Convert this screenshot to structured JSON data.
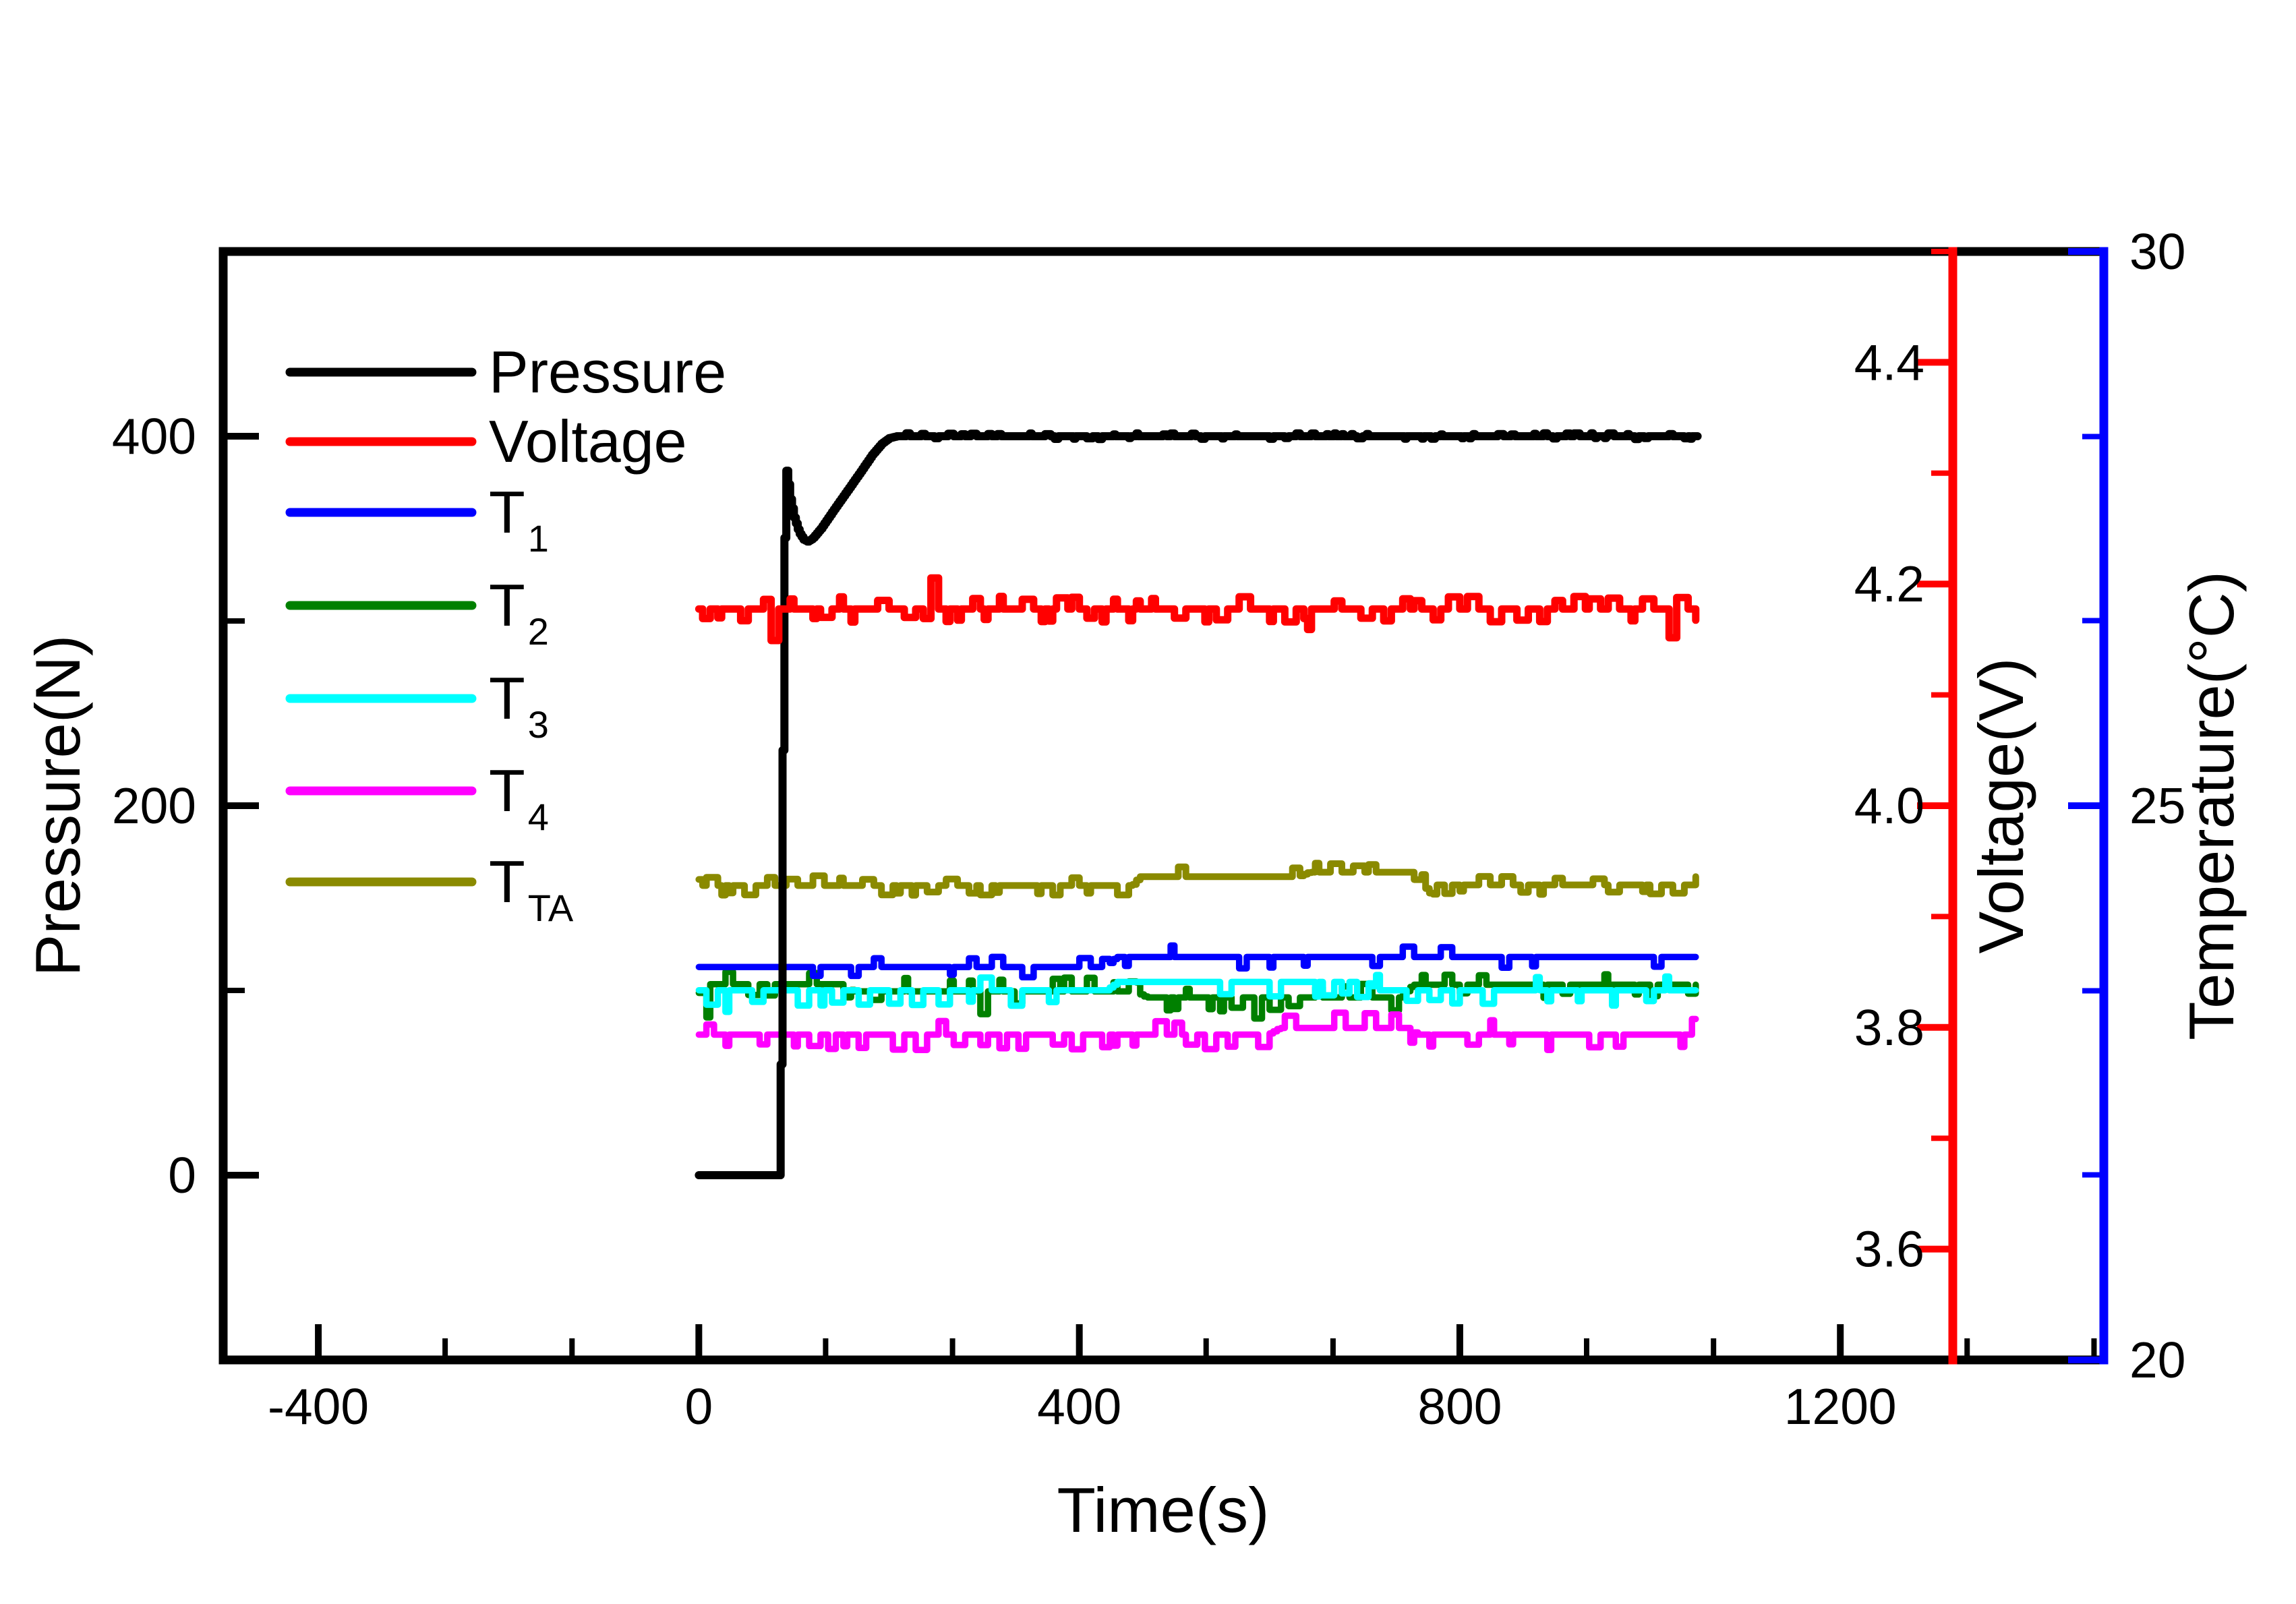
{
  "chart_data": {
    "type": "line",
    "title": "",
    "xlabel": "Time(s)",
    "x_range": [
      -500,
      1477
    ],
    "x_major_ticks": [
      -400,
      0,
      400,
      800,
      1200
    ],
    "x_minor_ticks": [
      -266.7,
      -133.3,
      133.3,
      266.7,
      533.3,
      666.7,
      933.3,
      1066.7,
      1333.3,
      1466.7
    ],
    "grid": false,
    "legend_position": "upper-left-inside",
    "time_span": [
      0,
      1050
    ],
    "sample_dt": 4,
    "axes": {
      "pressure": {
        "label": "Pressure(N)",
        "range": [
          -100,
          500
        ],
        "major_ticks": [
          0,
          200,
          400
        ],
        "minor_ticks": [
          100,
          300
        ],
        "color": "#000000"
      },
      "voltage": {
        "label": "Voltage(V)",
        "range": [
          3.5,
          4.5
        ],
        "major_ticks": [
          3.6,
          3.8,
          4.0,
          4.2,
          4.4
        ],
        "minor_ticks": [
          3.7,
          3.9,
          4.1,
          4.3,
          4.5
        ],
        "color": "#ff0000"
      },
      "temperature": {
        "label": "Temperature(°C)",
        "range": [
          20,
          30
        ],
        "major_ticks": [
          20,
          25,
          30
        ],
        "minor_ticks": [
          21.67,
          23.33,
          26.67,
          28.33
        ],
        "color": "#0000ff"
      }
    },
    "series": [
      {
        "name": "T2",
        "axis": "temperature",
        "color": "#008000",
        "width": 9.5,
        "dt": 4,
        "seed": 2007,
        "keypoints": [
          [
            0,
            23.39
          ],
          [
            152,
            23.39
          ],
          [
            162,
            23.325
          ],
          [
            458,
            23.325
          ],
          [
            470,
            23.27
          ],
          [
            738,
            23.27
          ],
          [
            750,
            23.385
          ],
          [
            1050,
            23.385
          ]
        ],
        "noise": {
          "amp": 0.1,
          "p": 0.25,
          "up_frac": 0.5,
          "regions": [
            [
              0,
              152,
              0.26,
              0.45
            ],
            [
              152,
              458,
              0.28,
              0.55
            ],
            [
              458,
              738,
              0.3,
              0.42
            ],
            [
              738,
              1050,
              0.22,
              0.5
            ]
          ]
        },
        "spikes": [
          {
            "t": 8,
            "v": 23.09,
            "w": 6
          },
          {
            "t": 298,
            "v": 23.12,
            "w": 6
          },
          {
            "t": 585,
            "v": 23.08,
            "w": 8
          }
        ]
      },
      {
        "name": "T3",
        "axis": "temperature",
        "color": "#00ffff",
        "width": 9.5,
        "dt": 4,
        "seed": 3011,
        "keypoints": [
          [
            0,
            23.335
          ],
          [
            428,
            23.335
          ],
          [
            440,
            23.41
          ],
          [
            702,
            23.41
          ],
          [
            714,
            23.335
          ],
          [
            1050,
            23.335
          ]
        ],
        "noise": {
          "amp": 0.115,
          "p": 0.2,
          "up_frac": 0.2,
          "regions": [
            [
              0,
              70,
              0.32,
              0.15
            ],
            [
              70,
              420,
              0.2,
              0.15
            ],
            [
              420,
              702,
              0.18,
              0.3
            ],
            [
              702,
              1050,
              0.16,
              0.2
            ]
          ]
        },
        "spikes": [
          {
            "t": 28,
            "v": 23.14,
            "w": 6
          }
        ]
      },
      {
        "name": "T1",
        "axis": "temperature",
        "color": "#0000ff",
        "width": 9.5,
        "dt": 4,
        "seed": 1003,
        "keypoints": [
          [
            0,
            23.545
          ],
          [
            428,
            23.545
          ],
          [
            438,
            23.635
          ],
          [
            1050,
            23.635
          ]
        ],
        "noise": {
          "amp": 0.09,
          "p": 0.1,
          "up_frac": 0.4,
          "regions": [
            [
              0,
              118,
              0.12,
              0.3
            ],
            [
              118,
              248,
              0.05,
              0.3
            ],
            [
              248,
              428,
              0.14,
              0.45
            ],
            [
              428,
              562,
              0.1,
              0.3
            ],
            [
              562,
              778,
              0.05,
              0.2
            ],
            [
              778,
              912,
              0.13,
              0.72
            ],
            [
              912,
              1050,
              0.08,
              0.25
            ]
          ]
        },
        "spikes": []
      },
      {
        "name": "T4",
        "axis": "temperature",
        "color": "#ff00ff",
        "width": 9.5,
        "dt": 4,
        "seed": 4019,
        "keypoints": [
          [
            0,
            22.935
          ],
          [
            598,
            22.935
          ],
          [
            610,
            22.995
          ],
          [
            744,
            22.995
          ],
          [
            756,
            22.935
          ],
          [
            1050,
            22.935
          ]
        ],
        "noise": {
          "amp": 0.115,
          "p": 0.3,
          "up_frac": 0.1,
          "regions": [
            [
              0,
              598,
              0.3,
              0.08
            ],
            [
              598,
              744,
              0.22,
              0.32
            ],
            [
              744,
              1050,
              0.28,
              0.08
            ]
          ]
        },
        "spikes": []
      },
      {
        "name": "TTA",
        "axis": "temperature",
        "color": "#8a8a00",
        "width": 10,
        "dt": 4,
        "seed": 5023,
        "keypoints": [
          [
            0,
            24.28
          ],
          [
            455,
            24.28
          ],
          [
            463,
            24.36
          ],
          [
            630,
            24.36
          ],
          [
            641,
            24.4
          ],
          [
            758,
            24.4
          ],
          [
            769,
            24.285
          ],
          [
            1050,
            24.285
          ]
        ],
        "noise": {
          "amp": 0.072,
          "p": 0.42,
          "up_frac": 0.5,
          "regions": [
            [
              0,
              455,
              0.45,
              0.5
            ],
            [
              455,
              630,
              0.12,
              0.6
            ],
            [
              630,
              758,
              0.3,
              0.6
            ],
            [
              758,
              1050,
              0.45,
              0.45
            ]
          ]
        },
        "spikes": []
      },
      {
        "name": "Pressure",
        "axis": "pressure",
        "color": "#000000",
        "width": 12,
        "dt": 2,
        "seed": 11,
        "keypoints": [
          [
            0,
            0
          ],
          [
            84,
            0
          ],
          [
            86,
            60
          ],
          [
            88,
            230
          ],
          [
            90,
            345
          ],
          [
            91.5,
            383
          ],
          [
            93,
            378
          ],
          [
            96,
            366
          ],
          [
            100,
            356
          ],
          [
            105,
            348
          ],
          [
            110,
            344
          ],
          [
            114,
            343
          ],
          [
            119,
            344.5
          ],
          [
            128,
            350
          ],
          [
            140,
            359
          ],
          [
            155,
            370
          ],
          [
            170,
            381
          ],
          [
            182,
            390
          ],
          [
            192,
            396
          ],
          [
            200,
            399
          ],
          [
            208,
            400
          ],
          [
            1050,
            400
          ]
        ],
        "noise": {
          "amp": 1.3,
          "p": 0,
          "up_frac": 0.5,
          "regions": [
            [
              215,
              1050,
              0.18,
              0.5
            ]
          ]
        },
        "spikes": []
      },
      {
        "name": "Voltage",
        "axis": "voltage",
        "color": "#ff0000",
        "width": 11,
        "dt": 4,
        "seed": 97,
        "keypoints": [
          [
            0,
            4.1775
          ],
          [
            1050,
            4.1775
          ]
        ],
        "noise": {
          "amp": 0.0095,
          "p": 0.55,
          "up_frac": 0.45,
          "regions": []
        },
        "spikes": [
          {
            "t": 78,
            "v": 4.149,
            "w": 7
          },
          {
            "t": 247,
            "v": 4.2055,
            "w": 6
          },
          {
            "t": 640,
            "v": 4.159,
            "w": 5
          },
          {
            "t": 1022,
            "v": 4.1515,
            "w": 7
          }
        ]
      }
    ],
    "legend": [
      {
        "label": "Pressure",
        "sub": "",
        "color": "#000000"
      },
      {
        "label": "Voltage",
        "sub": "",
        "color": "#ff0000"
      },
      {
        "label": "T",
        "sub": "1",
        "color": "#0000ff"
      },
      {
        "label": "T",
        "sub": "2",
        "color": "#008000"
      },
      {
        "label": "T",
        "sub": "3",
        "color": "#00ffff"
      },
      {
        "label": "T",
        "sub": "4",
        "color": "#ff00ff"
      },
      {
        "label": "T",
        "sub": "TA",
        "color": "#8a8a00"
      }
    ]
  }
}
